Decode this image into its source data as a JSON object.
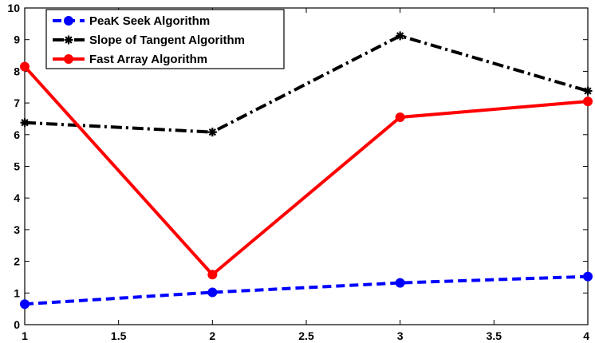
{
  "chart_data": {
    "type": "line",
    "title": "",
    "xlabel": "",
    "ylabel": "",
    "xlim": [
      1,
      4
    ],
    "ylim": [
      0,
      10
    ],
    "x_ticks": [
      "1",
      "1.5",
      "2",
      "2.5",
      "3",
      "3.5",
      "4"
    ],
    "y_ticks": [
      "0",
      "1",
      "2",
      "3",
      "4",
      "5",
      "6",
      "7",
      "8",
      "9",
      "10"
    ],
    "grid": false,
    "legend_position": "top-left",
    "x": [
      1,
      2,
      3,
      4
    ],
    "series": [
      {
        "name": "PeaK Seek Algorithm",
        "values": [
          0.65,
          1.02,
          1.32,
          1.52
        ],
        "color": "#0000ff",
        "line_style": "dashed",
        "marker": "circle"
      },
      {
        "name": "Slope of Tangent Algorithm",
        "values": [
          6.38,
          6.08,
          9.12,
          7.38
        ],
        "color": "#000000",
        "line_style": "dash-dot",
        "marker": "star"
      },
      {
        "name": "Fast Array Algorithm",
        "values": [
          8.15,
          1.58,
          6.55,
          7.05
        ],
        "color": "#ff0000",
        "line_style": "solid",
        "marker": "circle"
      }
    ]
  }
}
